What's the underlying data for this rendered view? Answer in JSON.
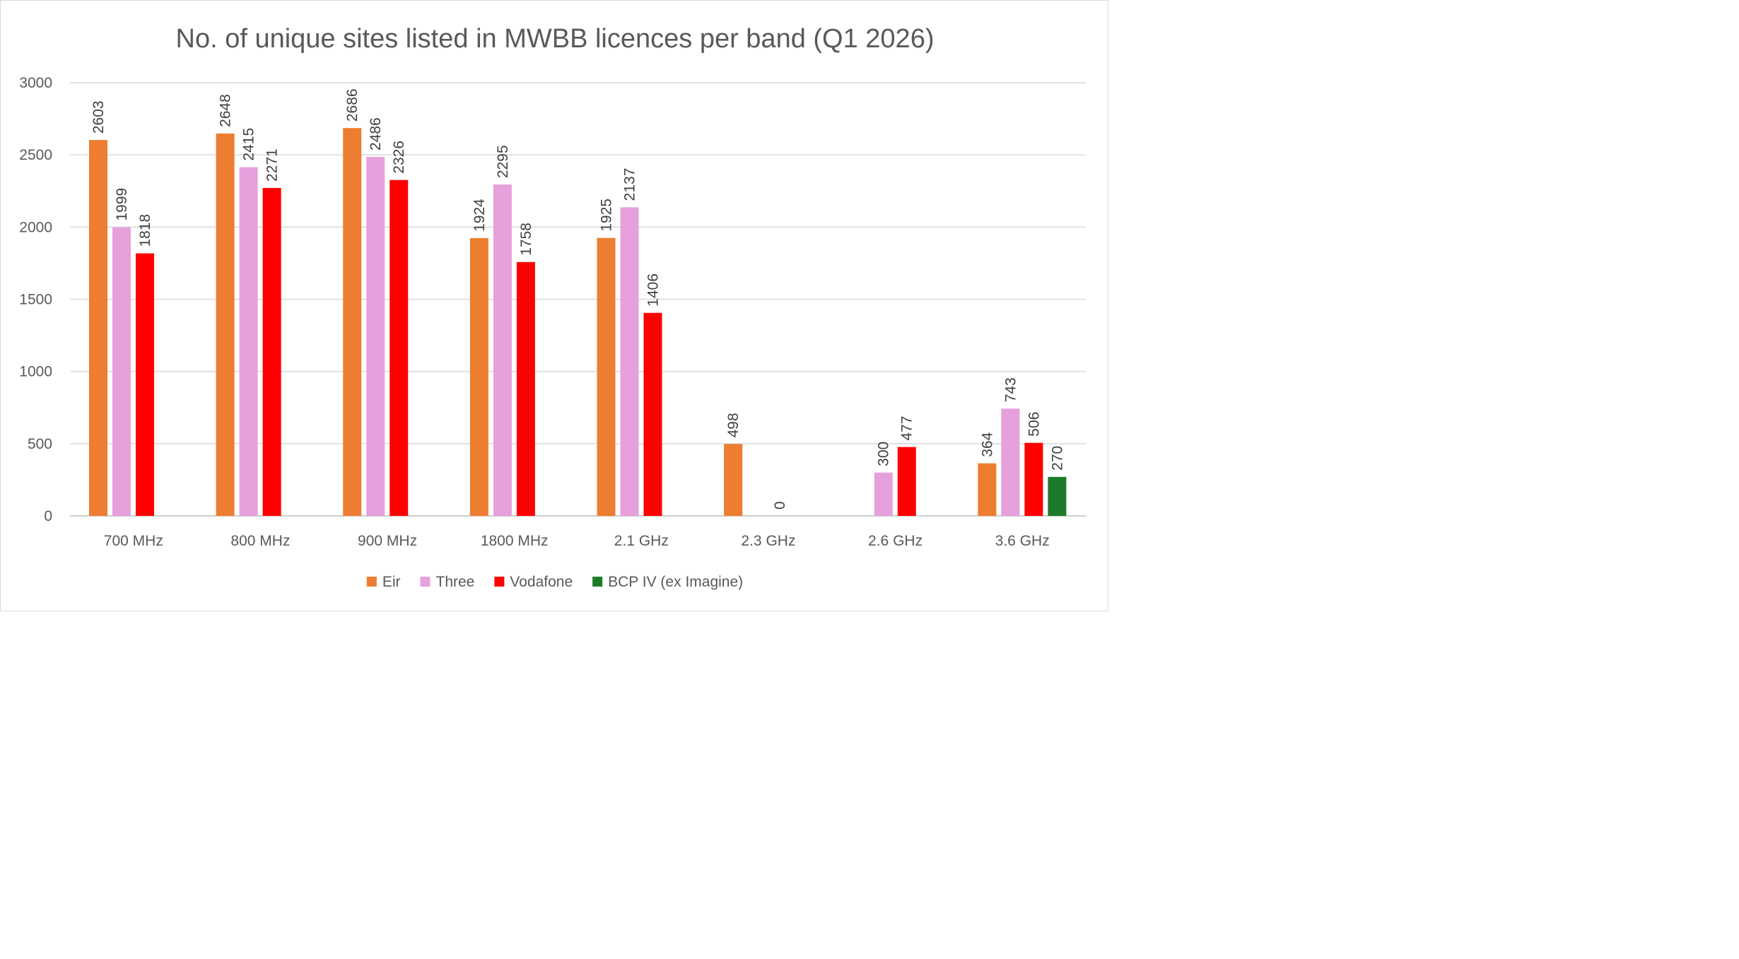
{
  "chart_data": {
    "type": "bar",
    "title": "No. of unique sites listed in MWBB licences per band (Q1 2026)",
    "xlabel": "",
    "ylabel": "",
    "categories": [
      "700 MHz",
      "800 MHz",
      "900 MHz",
      "1800 MHz",
      "2.1 GHz",
      "2.3 GHz",
      "2.6 GHz",
      "3.6 GHz"
    ],
    "ylim": [
      0,
      3000
    ],
    "yticks": [
      0,
      500,
      1000,
      1500,
      2000,
      2500,
      3000
    ],
    "grid": true,
    "legend_position": "bottom",
    "data_labels": true,
    "series": [
      {
        "name": "Eir",
        "color": "#ED7D31",
        "values": [
          2603,
          2648,
          2686,
          1924,
          1925,
          498,
          null,
          364
        ]
      },
      {
        "name": "Three",
        "color": "#E6A0DC",
        "values": [
          1999,
          2415,
          2486,
          2295,
          2137,
          null,
          300,
          743
        ]
      },
      {
        "name": "Vodafone",
        "color": "#FF0000",
        "values": [
          1818,
          2271,
          2326,
          1758,
          1406,
          0,
          477,
          506
        ]
      },
      {
        "name": "BCP IV (ex Imagine)",
        "color": "#1E7A2A",
        "values": [
          null,
          null,
          null,
          null,
          null,
          null,
          null,
          270
        ]
      }
    ]
  }
}
